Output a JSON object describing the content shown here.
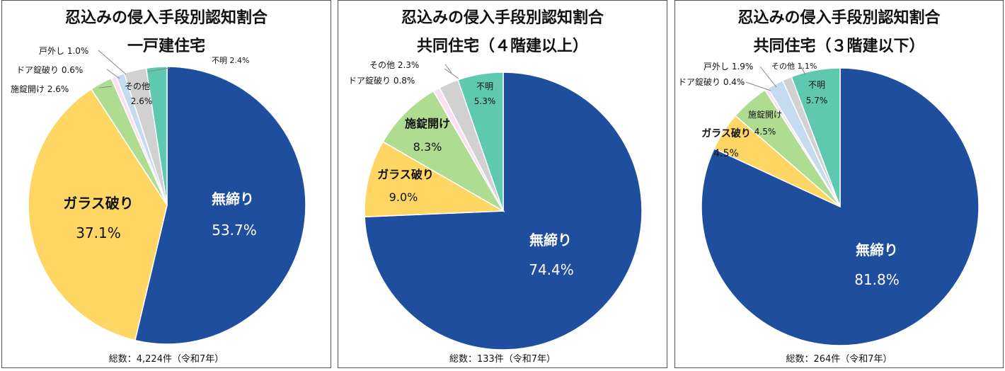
{
  "colors": {
    "無締り": "#1f4e9f",
    "ガラス破り": "#fdd663",
    "施錠開け": "#aedc91",
    "ドア錠破り": "#fbe0f3",
    "戸外し": "#c5dcf0",
    "その他": "#d1d1d1",
    "不明": "#5ec8b0"
  },
  "chart_data": [
    {
      "type": "pie",
      "title": "忍込みの侵入手段別認知割合",
      "subtitle": "一戸建住宅",
      "total": "総数：4,224件（令和7年）",
      "categories": [
        "無締り",
        "ガラス破り",
        "施錠開け",
        "ドア錠破り",
        "戸外し",
        "その他",
        "不明"
      ],
      "values": [
        53.7,
        37.1,
        2.6,
        0.6,
        1.0,
        2.6,
        2.4
      ],
      "labels": {
        "main_name": "無締り",
        "main_value": "53.7%",
        "glass_name": "ガラス破り",
        "glass_value": "37.1%",
        "lock_open": "施錠開け 2.6%",
        "door_break": "ドア錠破り 0.6%",
        "door_remove": "戸外し 1.0%",
        "other_name": "その他",
        "other_value": "2.6%",
        "unknown": "不明 2.4%"
      }
    },
    {
      "type": "pie",
      "title": "忍込みの侵入手段別認知割合",
      "subtitle": "共同住宅（４階建以上）",
      "total": "総数：133件（令和7年）",
      "categories": [
        "無締り",
        "ガラス破り",
        "施錠開け",
        "ドア錠破り",
        "その他",
        "不明"
      ],
      "values": [
        74.4,
        9.0,
        8.3,
        0.8,
        2.3,
        5.3
      ],
      "labels": {
        "main_name": "無締り",
        "main_value": "74.4%",
        "glass_name": "ガラス破り",
        "glass_value": "9.0%",
        "lock_name": "施錠開け",
        "lock_value": "8.3%",
        "door_break": "ドア錠破り 0.8%",
        "other": "その他 2.3%",
        "unknown_name": "不明",
        "unknown_value": "5.3%"
      }
    },
    {
      "type": "pie",
      "title": "忍込みの侵入手段別認知割合",
      "subtitle": "共同住宅（３階建以下）",
      "total": "総数：264件（令和7年）",
      "categories": [
        "無締り",
        "ガラス破り",
        "施錠開け",
        "ドア錠破り",
        "戸外し",
        "その他",
        "不明"
      ],
      "values": [
        81.8,
        4.5,
        4.5,
        0.4,
        1.9,
        1.1,
        5.7
      ],
      "labels": {
        "main_name": "無締り",
        "main_value": "81.8%",
        "glass_name": "ガラス破り",
        "glass_value": "4.5%",
        "lock_name": "施錠開け",
        "lock_value": "4.5%",
        "door_break": "ドア錠破り 0.4%",
        "door_remove": "戸外し 1.9%",
        "other": "その他 1.1%",
        "unknown_name": "不明",
        "unknown_value": "5.7%"
      }
    }
  ]
}
